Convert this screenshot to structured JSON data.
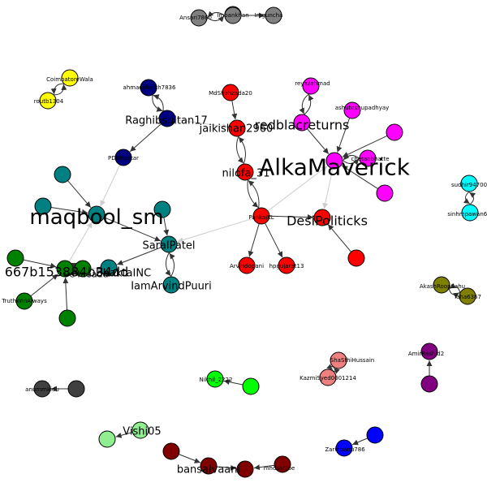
{
  "graph": {
    "labels": {
      "ansari": "Ansari7860",
      "sim4": "1954",
      "imbank": "Imbankhan",
      "gunchu": "Imguncha",
      "coimb": "CoimbatoreWala",
      "routb": "routb1304",
      "ahmad": "ahmadsheikh7836",
      "raghib": "Raghibsultan17",
      "pdb": "PDBhaskar",
      "mdsh": "MdShahzada20",
      "jaik": "jaikishan2960",
      "nilofa": "nilofa_31",
      "reyaz": "reyazahmad",
      "redbl": "redblacreturns",
      "ashu": "ashutoshupadhyay",
      "alka": "AlkaMaverick",
      "chet": "chetanbhatte",
      "maq": "maqbool_sm",
      "saral": "SaralPatel",
      "iam": "IamArvindPuuri",
      "g667": "667b153884b34dd",
      "gp2": "9e4aeadd",
      "inc": "BhaktaINC",
      "truth": "TruthWinAlways",
      "pankaj": "PankajKL",
      "desi": "DesiPoliticks",
      "arvind": "Arvindopani",
      "hp": "hpgujarat13",
      "sudhir": "sudhir94700",
      "sinh": "sinhmpawan66",
      "akash": "AkashRoopSahu",
      "taha": "Taha6367",
      "amir": "AmirRashid2",
      "srshi": "ShaSthiHussain",
      "kazmi": "KazmiSyed0001214",
      "nikhil": "Nikhil_2222",
      "anumm": "anummkidu",
      "vishi": "Vishi05",
      "bansal": "bansalvaani",
      "mhd": "mhdsanjoe",
      "zarin": "Zarinbanu786"
    }
  }
}
